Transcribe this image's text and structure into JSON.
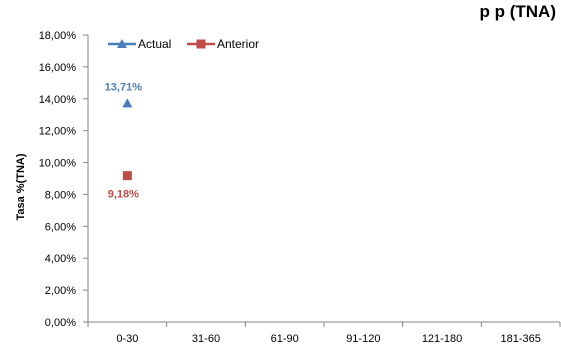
{
  "title_fragment": "p   p   (TNA)",
  "colors": {
    "actual": "#4A7EBB",
    "anterior": "#BE4B48",
    "axis": "#868686"
  },
  "chart_data": {
    "type": "scatter",
    "categories": [
      "0-30",
      "31-60",
      "61-90",
      "91-120",
      "121-180",
      "181-365"
    ],
    "ylabel": "Tasa %(TNA)",
    "ylim": [
      0,
      18
    ],
    "yticks": [
      0,
      2,
      4,
      6,
      8,
      10,
      12,
      14,
      16,
      18
    ],
    "ytick_labels": [
      "0,00%",
      "2,00%",
      "4,00%",
      "6,00%",
      "8,00%",
      "10,00%",
      "12,00%",
      "14,00%",
      "16,00%",
      "18,00%"
    ],
    "grid": false,
    "legend_position": "top-left",
    "series": [
      {
        "name": "Actual",
        "marker": "triangle",
        "values": [
          13.71,
          null,
          null,
          null,
          null,
          null
        ],
        "labels": [
          "13,71%",
          null,
          null,
          null,
          null,
          null
        ]
      },
      {
        "name": "Anterior",
        "marker": "square",
        "values": [
          9.18,
          null,
          null,
          null,
          null,
          null
        ],
        "labels": [
          "9,18%",
          null,
          null,
          null,
          null,
          null
        ]
      }
    ]
  }
}
